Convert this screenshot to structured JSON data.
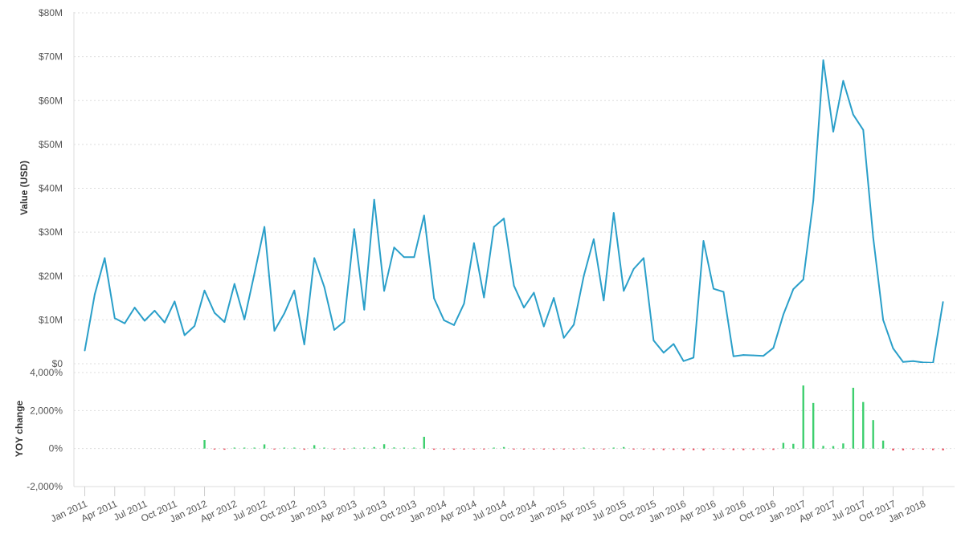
{
  "chart_data": [
    {
      "type": "line",
      "ylabel": "Value (USD)",
      "ylim": [
        0,
        80000000
      ],
      "yticks": [
        {
          "value": 0,
          "label": "$0"
        },
        {
          "value": 10000000,
          "label": "$10M"
        },
        {
          "value": 20000000,
          "label": "$20M"
        },
        {
          "value": 30000000,
          "label": "$30M"
        },
        {
          "value": 40000000,
          "label": "$40M"
        },
        {
          "value": 50000000,
          "label": "$50M"
        },
        {
          "value": 60000000,
          "label": "$60M"
        },
        {
          "value": 70000000,
          "label": "$70M"
        },
        {
          "value": 80000000,
          "label": "$80M"
        }
      ],
      "grid": true,
      "x_start": "2011-01",
      "x_end": "2018-05",
      "color": "#2a9fc9",
      "series": [
        {
          "values_millions_usd": [
            3.0,
            15.8,
            24.1,
            10.4,
            9.2,
            12.8,
            9.8,
            12.1,
            9.4,
            14.2,
            6.5,
            8.6,
            16.7,
            11.6,
            9.5,
            18.2,
            10.1,
            20.5,
            31.2,
            7.5,
            11.5,
            16.7,
            4.4,
            24.1,
            17.5,
            7.7,
            9.6,
            30.7,
            12.3,
            37.4,
            16.6,
            26.5,
            24.3,
            24.3,
            33.8,
            14.9,
            9.9,
            8.8,
            13.7,
            27.5,
            15.1,
            31.2,
            33.1,
            17.8,
            12.8,
            16.2,
            8.5,
            15.0,
            5.9,
            8.9,
            20.0,
            28.4,
            14.4,
            34.4,
            16.6,
            21.6,
            24.1,
            5.3,
            2.5,
            4.5,
            0.6,
            1.4,
            28.0,
            17.1,
            16.4,
            1.7,
            2.0,
            1.9,
            1.8,
            3.6,
            11.2,
            17.0,
            19.2,
            37.2,
            69.2,
            52.9,
            64.5,
            56.8,
            53.3,
            28.8,
            10.0,
            3.5,
            0.4,
            0.6,
            0.3,
            0.2,
            14.1
          ]
        }
      ]
    },
    {
      "type": "bar",
      "ylabel": "YOY change",
      "ylim": [
        -2000,
        4000
      ],
      "yticks": [
        {
          "value": -2000,
          "label": "-2,000%"
        },
        {
          "value": 0,
          "label": "0%"
        },
        {
          "value": 2000,
          "label": "2,000%"
        },
        {
          "value": 4000,
          "label": "4,000%"
        }
      ],
      "grid": true,
      "positive_color": "#3ecf6e",
      "negative_color": "#e8495a",
      "series": [
        {
          "values_percent": [
            null,
            null,
            null,
            null,
            null,
            null,
            null,
            null,
            null,
            null,
            null,
            null,
            450,
            -30,
            -60,
            20,
            10,
            40,
            220,
            -40,
            20,
            20,
            -60,
            180,
            5,
            -40,
            -30,
            50,
            20,
            80,
            230,
            60,
            40,
            20,
            620,
            -60,
            -40,
            -60,
            -30,
            -10,
            -20,
            10,
            80,
            -30,
            -30,
            -30,
            -40,
            -60,
            -20,
            -30,
            30,
            -10,
            -10,
            0,
            80,
            -20,
            -20,
            -70,
            -80,
            -70,
            -90,
            -80,
            -90,
            -40,
            -60,
            -80,
            -80,
            -70,
            -70,
            -70,
            300,
            250,
            3320,
            2400,
            140,
            130,
            270,
            3200,
            2450,
            1500,
            420,
            -100,
            -90,
            -60,
            -60,
            -80,
            -90
          ]
        }
      ]
    }
  ],
  "x_axis": {
    "tick_labels": [
      "Jan 2011",
      "Apr 2011",
      "Jul 2011",
      "Oct 2011",
      "Jan 2012",
      "Apr 2012",
      "Jul 2012",
      "Oct 2012",
      "Jan 2013",
      "Apr 2013",
      "Jul 2013",
      "Oct 2013",
      "Jan 2014",
      "Apr 2014",
      "Jul 2014",
      "Oct 2014",
      "Jan 2015",
      "Apr 2015",
      "Jul 2015",
      "Oct 2015",
      "Jan 2016",
      "Apr 2016",
      "Jul 2016",
      "Oct 2016",
      "Jan 2017",
      "Apr 2017",
      "Jul 2017",
      "Oct 2017",
      "Jan 2018"
    ]
  }
}
